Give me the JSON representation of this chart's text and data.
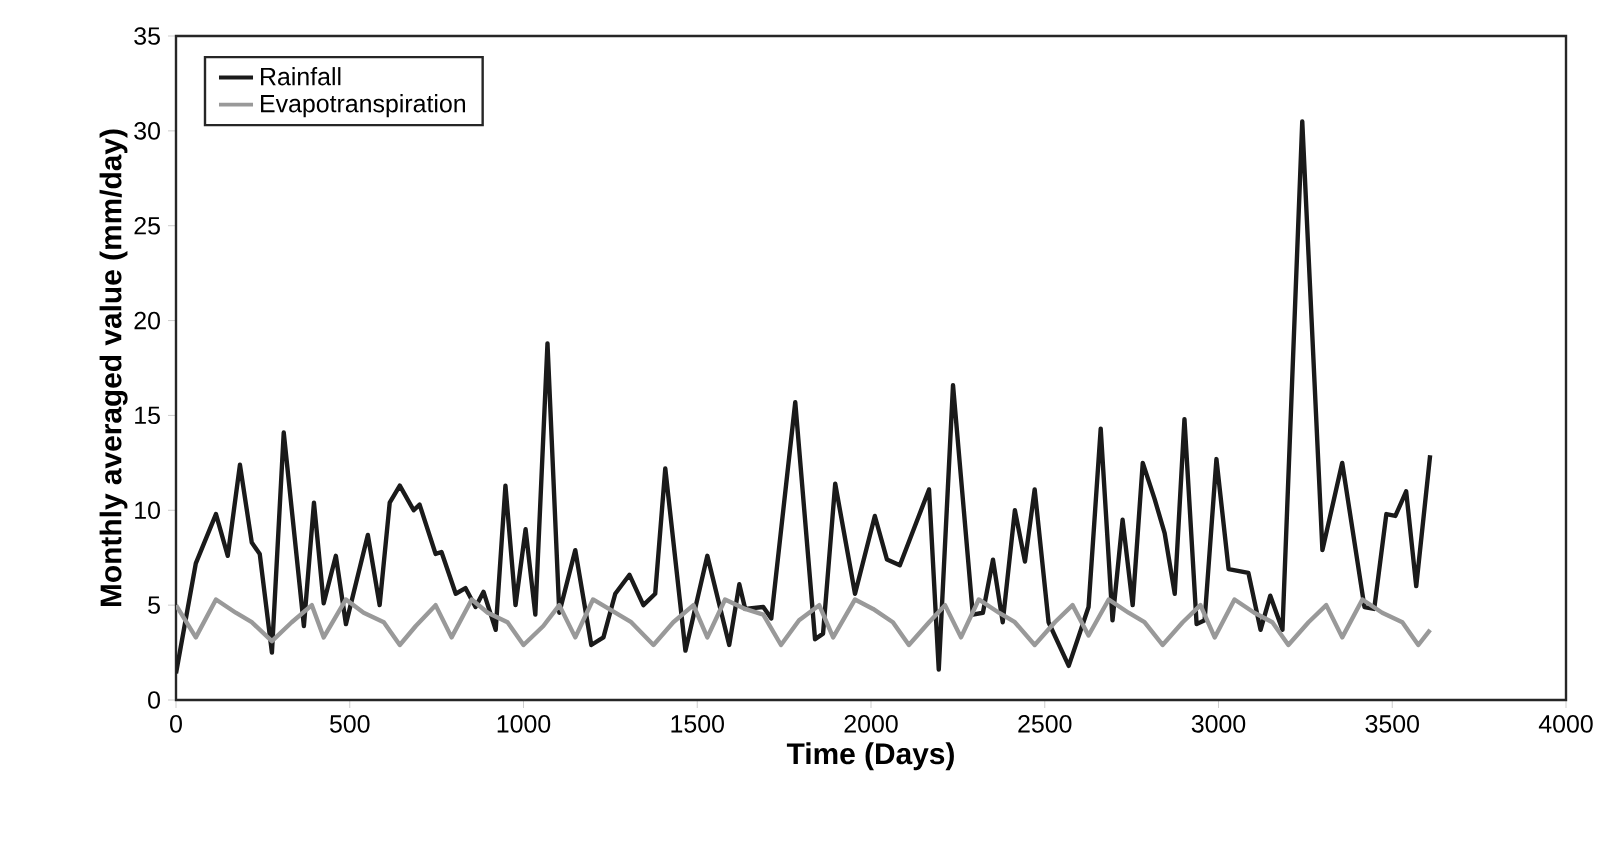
{
  "chart_data": {
    "type": "line",
    "xlabel": "Time (Days)",
    "ylabel": "Monthly averaged value (mm/day)",
    "xlim": [
      0,
      4000
    ],
    "ylim": [
      0,
      35
    ],
    "xticks": [
      0,
      500,
      1000,
      1500,
      2000,
      2500,
      3000,
      3500,
      4000
    ],
    "yticks": [
      0,
      5,
      10,
      15,
      20,
      25,
      30,
      35
    ],
    "legend": "top left",
    "marker": "none",
    "line_style": "solid",
    "series": [
      {
        "name": "Rainfall",
        "color": "#1a1a1a",
        "x": [
          0,
          57,
          115,
          149,
          184,
          218,
          241,
          276,
          310,
          368,
          397,
          425,
          460,
          489,
          552,
          586,
          615,
          644,
          684,
          701,
          747,
          764,
          805,
          833,
          862,
          885,
          920,
          948,
          977,
          1006,
          1034,
          1069,
          1103,
          1149,
          1195,
          1230,
          1264,
          1305,
          1345,
          1379,
          1408,
          1466,
          1529,
          1592,
          1621,
          1638,
          1690,
          1713,
          1782,
          1839,
          1862,
          1897,
          1954,
          2011,
          2046,
          2083,
          2167,
          2195,
          2236,
          2293,
          2322,
          2351,
          2379,
          2414,
          2443,
          2471,
          2511,
          2569,
          2626,
          2661,
          2695,
          2724,
          2753,
          2782,
          2816,
          2845,
          2874,
          2902,
          2937,
          2960,
          2994,
          3029,
          3086,
          3121,
          3149,
          3184,
          3241,
          3299,
          3356,
          3420,
          3448,
          3483,
          3509,
          3540,
          3569,
          3609
        ],
        "values": [
          1.4,
          7.2,
          9.8,
          7.6,
          12.4,
          8.3,
          7.7,
          2.5,
          14.1,
          3.9,
          10.4,
          5.1,
          7.6,
          4.0,
          8.7,
          5.0,
          10.4,
          11.3,
          10.0,
          10.3,
          7.7,
          7.8,
          5.6,
          5.9,
          4.9,
          5.7,
          3.7,
          11.3,
          5.0,
          9.0,
          4.5,
          18.8,
          4.6,
          7.9,
          2.9,
          3.3,
          5.6,
          6.6,
          5.0,
          5.6,
          12.2,
          2.6,
          7.6,
          2.9,
          6.1,
          4.8,
          4.9,
          4.3,
          15.7,
          3.2,
          3.5,
          11.4,
          5.6,
          9.7,
          7.4,
          7.1,
          11.1,
          1.6,
          16.6,
          4.5,
          4.6,
          7.4,
          4.1,
          10.0,
          7.3,
          11.1,
          4.1,
          1.8,
          4.9,
          14.3,
          4.2,
          9.5,
          5.0,
          12.5,
          10.6,
          8.8,
          5.6,
          14.8,
          4.0,
          4.2,
          12.7,
          6.9,
          6.7,
          3.7,
          5.5,
          3.7,
          30.5,
          7.9,
          12.5,
          4.9,
          4.8,
          9.8,
          9.7,
          11.0,
          6.0,
          12.9
        ]
      },
      {
        "name": "Evapotranspiration",
        "color": "#999999",
        "x": [
          0,
          57,
          115,
          172,
          218,
          276,
          333,
          391,
          425,
          489,
          540,
          598,
          644,
          690,
          747,
          793,
          851,
          897,
          954,
          1000,
          1057,
          1103,
          1149,
          1200,
          1264,
          1310,
          1374,
          1431,
          1489,
          1529,
          1580,
          1638,
          1690,
          1741,
          1793,
          1851,
          1891,
          1954,
          2006,
          2063,
          2109,
          2167,
          2213,
          2259,
          2310,
          2368,
          2414,
          2471,
          2529,
          2580,
          2626,
          2684,
          2741,
          2787,
          2839,
          2897,
          2948,
          2989,
          3046,
          3103,
          3155,
          3201,
          3259,
          3310,
          3356,
          3414,
          3471,
          3529,
          3575,
          3609
        ],
        "values": [
          5.0,
          3.3,
          5.3,
          4.6,
          4.1,
          3.1,
          4.1,
          5.0,
          3.3,
          5.3,
          4.6,
          4.1,
          2.9,
          3.9,
          5.0,
          3.3,
          5.3,
          4.6,
          4.1,
          2.9,
          3.9,
          5.0,
          3.3,
          5.3,
          4.6,
          4.1,
          2.9,
          4.1,
          5.0,
          3.3,
          5.3,
          4.8,
          4.5,
          2.9,
          4.2,
          5.0,
          3.3,
          5.3,
          4.8,
          4.1,
          2.9,
          4.1,
          5.0,
          3.3,
          5.3,
          4.6,
          4.1,
          2.9,
          4.1,
          5.0,
          3.4,
          5.3,
          4.6,
          4.1,
          2.9,
          4.1,
          5.0,
          3.3,
          5.3,
          4.6,
          4.1,
          2.9,
          4.1,
          5.0,
          3.3,
          5.3,
          4.6,
          4.1,
          2.9,
          3.7
        ]
      }
    ]
  }
}
